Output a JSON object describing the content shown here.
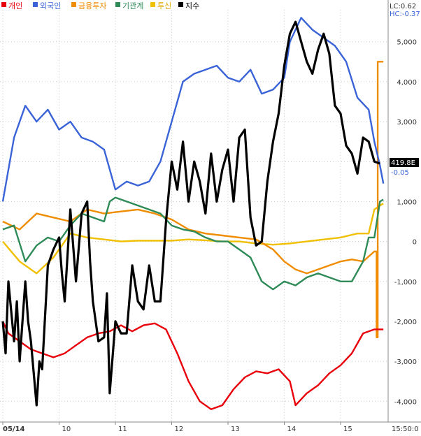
{
  "chart_data": {
    "type": "line",
    "legend": {
      "placement": "top-left",
      "items": [
        {
          "name": "개인",
          "color": "#e8000b"
        },
        {
          "name": "외국인",
          "color": "#3a63d8"
        },
        {
          "name": "금융투자",
          "color": "#f08c00"
        },
        {
          "name": "기관계",
          "color": "#2e8b57"
        },
        {
          "name": "투신",
          "color": "#f0c000"
        },
        {
          "name": "지수",
          "color": "#000000"
        }
      ]
    },
    "top_right": {
      "lc": "LC:0.62",
      "hc": "HC:-0.37"
    },
    "y_ticks": [
      5000,
      4000,
      3000,
      2000,
      1000,
      0,
      -1000,
      -2000,
      -3000,
      -4000
    ],
    "y_tick_labels": [
      "5,000",
      "4,000",
      "3,000",
      "2,000",
      "1,000",
      "0",
      "-1,000",
      "-2,000",
      "-3,000",
      "-4,000"
    ],
    "ylim": [
      -4450,
      5800
    ],
    "x_ticks": [
      "05/14",
      "10",
      "11",
      "12",
      "13",
      "14",
      "15"
    ],
    "x_tick_positions": [
      0,
      1,
      2,
      3,
      4,
      5,
      6
    ],
    "xlim": [
      0,
      6.82
    ],
    "end_label_black": "419.8E",
    "end_label_blue": "-0.05",
    "time_label": "15:50:0",
    "series": [
      {
        "name": "개인",
        "color": "#e8000b",
        "x": [
          0,
          0.1,
          0.3,
          0.5,
          0.7,
          0.9,
          1.1,
          1.3,
          1.5,
          1.7,
          1.9,
          2.1,
          2.3,
          2.5,
          2.7,
          2.9,
          3.1,
          3.3,
          3.5,
          3.7,
          3.9,
          4.1,
          4.3,
          4.5,
          4.7,
          4.9,
          5.1,
          5.2,
          5.4,
          5.6,
          5.8,
          6.0,
          6.2,
          6.4,
          6.6,
          6.76
        ],
        "y": [
          -2000,
          -2300,
          -2500,
          -2700,
          -2800,
          -2900,
          -2800,
          -2600,
          -2400,
          -2300,
          -2250,
          -2100,
          -2250,
          -2100,
          -2050,
          -2200,
          -2800,
          -3500,
          -4000,
          -4200,
          -4100,
          -3700,
          -3400,
          -3250,
          -3300,
          -3200,
          -3500,
          -4100,
          -3800,
          -3600,
          -3300,
          -3100,
          -2800,
          -2300,
          -2200,
          -2200
        ]
      },
      {
        "name": "외국인",
        "color": "#3a63d8",
        "x": [
          0,
          0.2,
          0.4,
          0.6,
          0.8,
          1.0,
          1.2,
          1.4,
          1.6,
          1.8,
          2.0,
          2.2,
          2.4,
          2.6,
          2.8,
          3.0,
          3.2,
          3.4,
          3.6,
          3.8,
          4.0,
          4.2,
          4.4,
          4.6,
          4.8,
          5.0,
          5.1,
          5.3,
          5.5,
          5.7,
          5.9,
          6.1,
          6.3,
          6.5,
          6.6,
          6.7,
          6.76
        ],
        "y": [
          1000,
          2600,
          3400,
          3000,
          3300,
          2800,
          3000,
          2600,
          2500,
          2300,
          1300,
          1500,
          1400,
          1500,
          2000,
          3000,
          4000,
          4200,
          4300,
          4400,
          4100,
          4000,
          4300,
          3700,
          3800,
          4100,
          5000,
          5600,
          5300,
          5100,
          4900,
          4500,
          3600,
          3300,
          2500,
          1900,
          1450
        ]
      },
      {
        "name": "금융투자",
        "color": "#f08c00",
        "x": [
          0,
          0.3,
          0.6,
          0.9,
          1.2,
          1.5,
          1.8,
          2.1,
          2.4,
          2.7,
          3.0,
          3.3,
          3.6,
          3.9,
          4.2,
          4.5,
          4.8,
          5.0,
          5.2,
          5.4,
          5.6,
          5.8,
          6.0,
          6.2,
          6.4,
          6.6,
          6.64,
          6.64,
          6.66,
          6.66,
          6.76
        ],
        "y": [
          500,
          300,
          700,
          600,
          500,
          800,
          700,
          750,
          800,
          700,
          550,
          300,
          200,
          150,
          100,
          50,
          -200,
          -500,
          -700,
          -800,
          -700,
          -600,
          -500,
          -450,
          -500,
          -250,
          -250,
          -2400,
          -2400,
          4500,
          4500
        ]
      },
      {
        "name": "기관계",
        "color": "#2e8b57",
        "x": [
          0,
          0.2,
          0.4,
          0.6,
          0.8,
          1.0,
          1.2,
          1.4,
          1.6,
          1.8,
          1.9,
          2.0,
          2.2,
          2.4,
          2.6,
          2.8,
          3.0,
          3.2,
          3.4,
          3.6,
          3.8,
          4.0,
          4.2,
          4.4,
          4.6,
          4.8,
          5.0,
          5.2,
          5.4,
          5.6,
          5.8,
          6.0,
          6.2,
          6.4,
          6.5,
          6.6,
          6.7,
          6.76
        ],
        "y": [
          300,
          400,
          -500,
          -100,
          100,
          0,
          400,
          700,
          600,
          500,
          1000,
          1100,
          1000,
          900,
          800,
          700,
          400,
          300,
          250,
          100,
          0,
          0,
          -200,
          -400,
          -1000,
          -1200,
          -1000,
          -1100,
          -900,
          -800,
          -900,
          -1000,
          -1000,
          -500,
          100,
          100,
          1000,
          1050
        ]
      },
      {
        "name": "투신",
        "color": "#f0c000",
        "x": [
          0,
          0.3,
          0.6,
          0.9,
          1.2,
          1.5,
          1.8,
          2.1,
          2.4,
          2.7,
          3.0,
          3.3,
          3.6,
          3.9,
          4.2,
          4.5,
          4.8,
          5.1,
          5.4,
          5.7,
          6.0,
          6.3,
          6.5,
          6.6,
          6.7,
          6.76
        ],
        "y": [
          0,
          -500,
          -800,
          -400,
          200,
          100,
          50,
          0,
          20,
          20,
          20,
          50,
          30,
          0,
          0,
          -50,
          -80,
          -50,
          0,
          50,
          100,
          200,
          200,
          800,
          900,
          950
        ]
      },
      {
        "name": "지수",
        "color": "#000000",
        "x": [
          0,
          0.05,
          0.1,
          0.2,
          0.25,
          0.3,
          0.4,
          0.45,
          0.5,
          0.6,
          0.65,
          0.7,
          0.8,
          0.9,
          1.0,
          1.05,
          1.1,
          1.2,
          1.3,
          1.4,
          1.5,
          1.55,
          1.6,
          1.7,
          1.8,
          1.85,
          1.9,
          2.0,
          2.1,
          2.2,
          2.3,
          2.4,
          2.5,
          2.6,
          2.7,
          2.8,
          2.9,
          3.0,
          3.1,
          3.2,
          3.3,
          3.4,
          3.5,
          3.6,
          3.7,
          3.8,
          3.9,
          4.0,
          4.1,
          4.2,
          4.3,
          4.4,
          4.5,
          4.6,
          4.7,
          4.8,
          4.9,
          5.0,
          5.1,
          5.2,
          5.3,
          5.4,
          5.5,
          5.6,
          5.7,
          5.8,
          5.9,
          6.0,
          6.1,
          6.2,
          6.3,
          6.4,
          6.5,
          6.6,
          6.7
        ],
        "y": [
          -2000,
          -2800,
          -1000,
          -2500,
          -1500,
          -3000,
          -1000,
          -2000,
          -2500,
          -4100,
          -3000,
          -3200,
          -600,
          -200,
          100,
          -800,
          -1500,
          800,
          -1000,
          700,
          1000,
          -500,
          -1500,
          -2500,
          -2400,
          -1300,
          -3800,
          -2000,
          -2300,
          -2300,
          -600,
          -1500,
          -1700,
          -600,
          -1500,
          -1500,
          500,
          2000,
          1300,
          2500,
          1000,
          2000,
          1500,
          700,
          2200,
          1000,
          1800,
          2300,
          1000,
          2600,
          2800,
          600,
          -100,
          0,
          1500,
          2500,
          3200,
          4400,
          5200,
          5500,
          5000,
          4500,
          4200,
          4800,
          5200,
          4700,
          3400,
          3200,
          2400,
          2200,
          1700,
          2600,
          2500,
          2000,
          1950
        ]
      }
    ]
  }
}
